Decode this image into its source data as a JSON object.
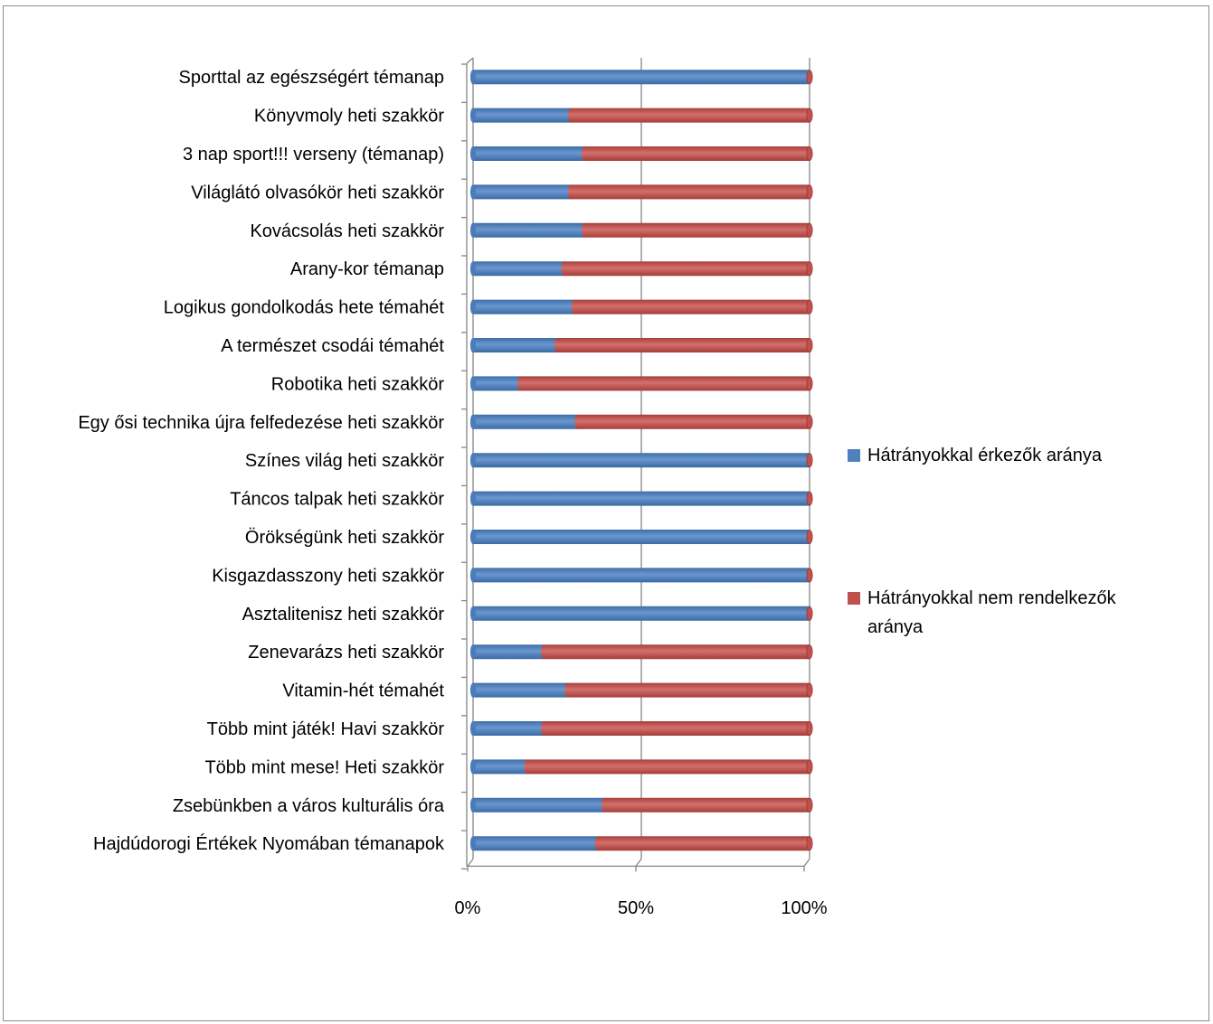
{
  "chart_data": {
    "type": "bar",
    "orientation": "horizontal",
    "stacked": "percent",
    "categories": [
      "Sporttal az egészségért témanap",
      "Könyvmoly heti szakkör",
      "3 nap sport!!! verseny (témanap)",
      "Világlátó olvasókör heti szakkör",
      "Kovácsolás heti szakkör",
      "Arany-kor témanap",
      "Logikus gondolkodás hete témahét",
      "A természet csodái témahét",
      "Robotika heti szakkör",
      "Egy ősi technika újra felfedezése heti szakkör",
      "Színes világ heti szakkör",
      "Táncos talpak heti szakkör",
      "Örökségünk heti szakkör",
      "Kisgazdasszony heti szakkör",
      "Asztalitenisz heti szakkör",
      "Zenevarázs heti szakkör",
      "Vitamin-hét témahét",
      "Több mint játék! Havi szakkör",
      "Több mint mese! Heti szakkör",
      "Zsebünkben a város kulturális óra",
      "Hajdúdorogi Értékek Nyomában témanapok"
    ],
    "series": [
      {
        "name": "Hátrányokkal érkezők aránya",
        "color": "#4f81bd",
        "values": [
          100,
          29,
          33,
          29,
          33,
          27,
          30,
          25,
          14,
          31,
          100,
          100,
          100,
          100,
          100,
          21,
          28,
          21,
          16,
          39,
          37
        ]
      },
      {
        "name": "Hátrányokkal nem rendelkezők aránya",
        "color": "#c0504d",
        "values": [
          0,
          71,
          67,
          71,
          67,
          73,
          70,
          75,
          86,
          69,
          0,
          0,
          0,
          0,
          0,
          79,
          72,
          79,
          84,
          61,
          63
        ]
      }
    ],
    "x_ticks": [
      "0%",
      "50%",
      "100%"
    ],
    "xlim": [
      0,
      100
    ],
    "grid": "vertical major gridlines",
    "legend": {
      "position": "right",
      "items": [
        {
          "lines": [
            "Hátrányokkal érkezők aránya"
          ],
          "color": "#4f81bd"
        },
        {
          "lines": [
            "Hátrányokkal nem rendelkezők",
            "aránya"
          ],
          "color": "#c0504d"
        }
      ]
    }
  }
}
